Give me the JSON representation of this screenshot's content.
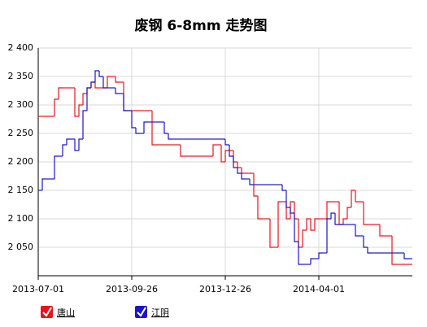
{
  "chart_data": {
    "type": "step-line",
    "title": "废钢 6-8mm 走势图",
    "categories": [
      "2013-07-01",
      null,
      null,
      null,
      null,
      null,
      null,
      null,
      null,
      null,
      null,
      null,
      null,
      null,
      null,
      null,
      null,
      null,
      null,
      null,
      null,
      null,
      null,
      "2013-09-26",
      null,
      null,
      null,
      null,
      null,
      null,
      null,
      null,
      null,
      null,
      null,
      null,
      null,
      null,
      null,
      null,
      null,
      null,
      null,
      null,
      null,
      null,
      "2013-12-26",
      null,
      null,
      null,
      null,
      null,
      null,
      null,
      null,
      null,
      null,
      null,
      null,
      null,
      null,
      null,
      null,
      null,
      null,
      null,
      null,
      null,
      null,
      "2014-04-01",
      null,
      null,
      null,
      null,
      null,
      null,
      null,
      null,
      null,
      null,
      null,
      null,
      null,
      null,
      null,
      null,
      null,
      null,
      null,
      null,
      null,
      null,
      null
    ],
    "ylim": [
      2000,
      2400
    ],
    "yticks": [
      {
        "value": 2050,
        "label": "2 050"
      },
      {
        "value": 2100,
        "label": "2 100"
      },
      {
        "value": 2150,
        "label": "2 150"
      },
      {
        "value": 2200,
        "label": "2 200"
      },
      {
        "value": 2250,
        "label": "2 250"
      },
      {
        "value": 2300,
        "label": "2 300"
      },
      {
        "value": 2350,
        "label": "2 350"
      },
      {
        "value": 2400,
        "label": "2 400"
      }
    ],
    "grid": true,
    "legend": "bottom",
    "series": [
      {
        "name": "唐山",
        "color": "#e8141b",
        "values": [
          2280,
          2280,
          2280,
          2280,
          2310,
          2330,
          2330,
          2330,
          2330,
          2280,
          2300,
          2320,
          2330,
          2340,
          2330,
          2330,
          2330,
          2350,
          2350,
          2340,
          2340,
          2290,
          2290,
          2290,
          2290,
          2290,
          2290,
          2290,
          2230,
          2230,
          2230,
          2230,
          2230,
          2230,
          2230,
          2210,
          2210,
          2210,
          2210,
          2210,
          2210,
          2210,
          2210,
          2230,
          2230,
          2200,
          2220,
          2220,
          2200,
          2190,
          2180,
          2180,
          2180,
          2140,
          2100,
          2100,
          2100,
          2050,
          2050,
          2130,
          2130,
          2100,
          2130,
          2100,
          2050,
          2080,
          2100,
          2080,
          2100,
          2100,
          2100,
          2130,
          2130,
          2130,
          2090,
          2100,
          2120,
          2150,
          2130,
          2130,
          2090,
          2090,
          2090,
          2090,
          2070,
          2070,
          2070,
          2020,
          2020,
          2020,
          2020,
          2020,
          2020
        ]
      },
      {
        "name": "江阴",
        "color": "#1a16c8",
        "values": [
          2150,
          2170,
          2170,
          2170,
          2210,
          2210,
          2230,
          2240,
          2240,
          2220,
          2240,
          2290,
          2330,
          2340,
          2360,
          2350,
          2330,
          2330,
          2330,
          2320,
          2320,
          2290,
          2290,
          2260,
          2250,
          2250,
          2270,
          2270,
          2270,
          2270,
          2270,
          2250,
          2240,
          2240,
          2240,
          2240,
          2240,
          2240,
          2240,
          2240,
          2240,
          2240,
          2240,
          2240,
          2240,
          2240,
          2230,
          2210,
          2190,
          2180,
          2170,
          2170,
          2160,
          2160,
          2160,
          2160,
          2160,
          2160,
          2160,
          2160,
          2150,
          2120,
          2110,
          2060,
          2020,
          2020,
          2020,
          2030,
          2030,
          2040,
          2040,
          2100,
          2110,
          2090,
          2090,
          2090,
          2090,
          2090,
          2070,
          2070,
          2050,
          2040,
          2040,
          2040,
          2040,
          2040,
          2040,
          2040,
          2040,
          2040,
          2030,
          2030,
          2030
        ]
      }
    ]
  }
}
